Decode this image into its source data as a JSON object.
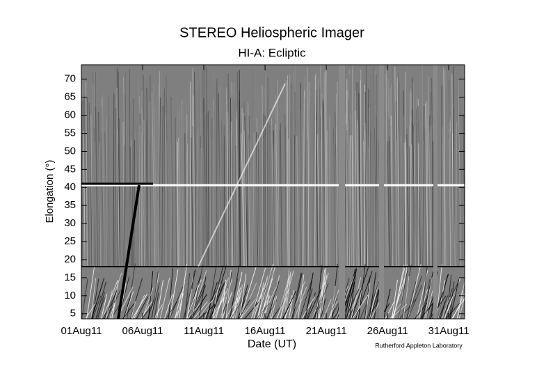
{
  "chart_data": {
    "type": "image",
    "title": "STEREO Heliospheric Imager",
    "subtitle": "HI-A: Ecliptic",
    "x_label": "Date (UT)",
    "y_label": "Elongation (°)",
    "credit": "Rutherford Appleton Laboratory",
    "xlim": [
      1,
      32.3
    ],
    "xticks": [
      {
        "value": 1,
        "label": "01Aug11"
      },
      {
        "value": 6,
        "label": "06Aug11"
      },
      {
        "value": 11,
        "label": "11Aug11"
      },
      {
        "value": 16,
        "label": "16Aug11"
      },
      {
        "value": 21,
        "label": "21Aug11"
      },
      {
        "value": 26,
        "label": "26Aug11"
      },
      {
        "value": 31,
        "label": "31Aug11"
      }
    ],
    "ylim": [
      3.6,
      74
    ],
    "yticks": [
      5,
      10,
      15,
      20,
      25,
      30,
      35,
      40,
      45,
      50,
      55,
      60,
      65,
      70
    ]
  }
}
